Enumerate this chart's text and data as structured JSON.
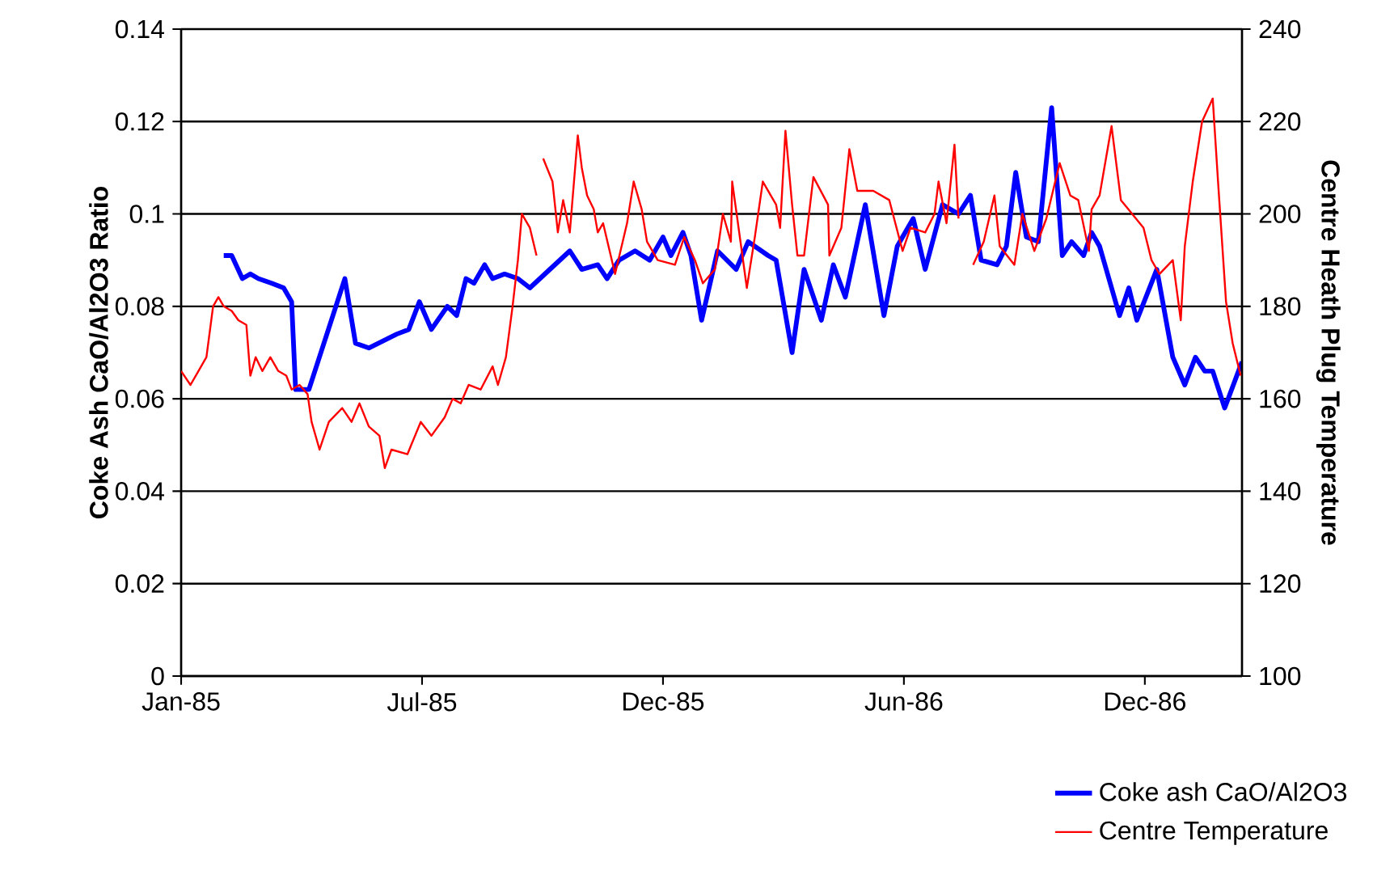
{
  "chart_data": {
    "type": "line",
    "ylabel": "Coke Ash CaO/Al2O3 Ratio",
    "y2label": "Centre Heath Plug Temperature",
    "xlim": [
      "1985-01-01",
      "1987-03-09"
    ],
    "xticks": [
      {
        "value": "1985-01-01",
        "label": "Jan-85"
      },
      {
        "value": "1985-07-01",
        "label": "Jul-85"
      },
      {
        "value": "1985-12-29",
        "label": "Dec-85"
      },
      {
        "value": "1986-06-28",
        "label": "Jun-86"
      },
      {
        "value": "1986-12-26",
        "label": "Dec-86"
      }
    ],
    "ylim": [
      0,
      0.14
    ],
    "yticks": [
      0,
      0.02,
      0.04,
      0.06,
      0.08,
      0.1,
      0.12,
      0.14
    ],
    "y2lim": [
      100,
      240
    ],
    "y2ticks": [
      100,
      120,
      140,
      160,
      180,
      200,
      220,
      240
    ],
    "grid": "y",
    "legend": "bottom right",
    "series": [
      {
        "name": "Coke ash CaO/Al2O3",
        "color": "#0000ff",
        "axis": "y",
        "x": [
          "1985-02-02",
          "1985-02-08",
          "1985-02-16",
          "1985-02-22",
          "1985-02-28",
          "1985-03-10",
          "1985-03-19",
          "1985-03-25",
          "1985-03-28",
          "1985-04-07",
          "1985-05-04",
          "1985-05-12",
          "1985-05-22",
          "1985-06-12",
          "1985-06-21",
          "1985-06-29",
          "1985-07-08",
          "1985-07-20",
          "1985-07-27",
          "1985-08-03",
          "1985-08-09",
          "1985-08-17",
          "1985-08-23",
          "1985-09-01",
          "1985-09-11",
          "1985-09-20",
          "1985-10-20",
          "1985-10-29",
          "1985-11-10",
          "1985-11-17",
          "1985-11-26",
          "1985-12-08",
          "1985-12-19",
          "1985-12-29",
          "1986-01-04",
          "1986-01-13",
          "1986-01-19",
          "1986-01-27",
          "1986-02-08",
          "1986-02-22",
          "1986-03-03",
          "1986-03-18",
          "1986-03-24",
          "1986-04-05",
          "1986-04-14",
          "1986-04-27",
          "1986-05-06",
          "1986-05-15",
          "1986-05-30",
          "1986-06-13",
          "1986-06-23",
          "1986-07-05",
          "1986-07-14",
          "1986-07-27",
          "1986-08-08",
          "1986-08-17",
          "1986-08-25",
          "1986-09-06",
          "1986-09-13",
          "1986-09-20",
          "1986-09-28",
          "1986-10-07",
          "1986-10-17",
          "1986-10-25",
          "1986-11-01",
          "1986-11-10",
          "1986-11-16",
          "1986-11-22",
          "1986-12-07",
          "1986-12-14",
          "1986-12-20",
          "1987-01-04",
          "1987-01-16",
          "1987-01-25",
          "1987-02-02",
          "1987-02-09",
          "1987-02-15",
          "1987-02-24",
          "1987-03-09"
        ],
        "values": [
          0.091,
          0.091,
          0.086,
          0.087,
          0.086,
          0.085,
          0.084,
          0.081,
          0.062,
          0.062,
          0.086,
          0.072,
          0.071,
          0.074,
          0.075,
          0.081,
          0.075,
          0.08,
          0.078,
          0.086,
          0.085,
          0.089,
          0.086,
          0.087,
          0.086,
          0.084,
          0.092,
          0.088,
          0.089,
          0.086,
          0.09,
          0.092,
          0.09,
          0.095,
          0.091,
          0.096,
          0.091,
          0.077,
          0.092,
          0.088,
          0.094,
          0.091,
          0.09,
          0.07,
          0.088,
          0.077,
          0.089,
          0.082,
          0.102,
          0.078,
          0.093,
          0.099,
          0.088,
          0.102,
          0.1,
          0.104,
          0.09,
          0.089,
          0.093,
          0.109,
          0.095,
          0.094,
          0.123,
          0.091,
          0.094,
          0.091,
          0.096,
          0.093,
          0.078,
          0.084,
          0.077,
          0.088,
          0.069,
          0.063,
          0.069,
          0.066,
          0.066,
          0.058,
          0.068
        ]
      },
      {
        "name": "Centre Temperature",
        "color": "#ff0000",
        "axis": "y2",
        "x": [
          "1985-01-01",
          "1985-01-08",
          "1985-01-14",
          "1985-01-20",
          "1985-01-25",
          "1985-01-29",
          "1985-02-02",
          "1985-02-08",
          "1985-02-13",
          "1985-02-19",
          "1985-02-22",
          "1985-02-26",
          "1985-03-03",
          "1985-03-09",
          "1985-03-15",
          "1985-03-21",
          "1985-03-25",
          "1985-03-31",
          "1985-04-06",
          "1985-04-09",
          "1985-04-15",
          "1985-04-22",
          "1985-05-02",
          "1985-05-09",
          "1985-05-15",
          "1985-05-22",
          "1985-05-30",
          "1985-06-03",
          "1985-06-08",
          "1985-06-20",
          "1985-06-30",
          "1985-07-08",
          "1985-07-18",
          "1985-07-24",
          "1985-07-30",
          "1985-08-05",
          "1985-08-14",
          "1985-08-23",
          "1985-08-27",
          "1985-09-02",
          "1985-09-07",
          "1985-09-11",
          "1985-09-14",
          "1985-09-20",
          "1985-09-25",
          "1985-09-27",
          "1985-09-30",
          "1985-10-07",
          "1985-10-11",
          "1985-10-15",
          "1985-10-20",
          "1985-10-26",
          "1985-10-29",
          "1985-11-02",
          "1985-11-07",
          "1985-11-10",
          "1985-11-14",
          "1985-11-23",
          "1985-12-02",
          "1985-12-07",
          "1985-12-13",
          "1985-12-17",
          "1985-12-25",
          "1986-01-07",
          "1986-01-14",
          "1986-01-22",
          "1986-01-28",
          "1986-02-06",
          "1986-02-12",
          "1986-02-18",
          "1986-02-19",
          "1986-03-02",
          "1986-03-08",
          "1986-03-14",
          "1986-03-24",
          "1986-03-27",
          "1986-03-31",
          "1986-04-05",
          "1986-04-09",
          "1986-04-14",
          "1986-04-21",
          "1986-05-02",
          "1986-05-03",
          "1986-05-12",
          "1986-05-18",
          "1986-05-24",
          "1986-06-05",
          "1986-06-17",
          "1986-06-27",
          "1986-07-03",
          "1986-07-14",
          "1986-07-21",
          "1986-07-24",
          "1986-07-30",
          "1986-08-05",
          "1986-08-08",
          "1986-08-13",
          "1986-08-19",
          "1986-08-27",
          "1986-09-04",
          "1986-09-08",
          "1986-09-19",
          "1986-09-25",
          "1986-10-04",
          "1986-10-13",
          "1986-10-23",
          "1986-10-31",
          "1986-11-06",
          "1986-11-14",
          "1986-11-16",
          "1986-11-22",
          "1986-12-01",
          "1986-12-08",
          "1986-12-25",
          "1986-12-31",
          "1987-01-06",
          "1987-01-16",
          "1987-01-22",
          "1987-01-25",
          "1987-01-31",
          "1987-02-07",
          "1987-02-15",
          "1987-02-19",
          "1987-02-25",
          "1987-03-02",
          "1987-03-08"
        ],
        "values": [
          166,
          163,
          166,
          169,
          180,
          182,
          180,
          179,
          177,
          176,
          165,
          169,
          166,
          169,
          166,
          165,
          162,
          163,
          161,
          155,
          149,
          155,
          158,
          155,
          159,
          154,
          152,
          145,
          149,
          148,
          155,
          152,
          156,
          160,
          159,
          163,
          162,
          167,
          163,
          169,
          180,
          190,
          200,
          197,
          191,
          null,
          212,
          207,
          196,
          203,
          196,
          217,
          210,
          204,
          201,
          196,
          198,
          187,
          198,
          207,
          201,
          194,
          190,
          189,
          195,
          190,
          185,
          188,
          200,
          194,
          207,
          184,
          195,
          207,
          202,
          197,
          218,
          202,
          191,
          191,
          208,
          202,
          191,
          197,
          214,
          205,
          205,
          203,
          192,
          197,
          196,
          200,
          207,
          198,
          215,
          199,
          null,
          189,
          194,
          204,
          193,
          189,
          200,
          192,
          199,
          211,
          204,
          203,
          192,
          201,
          204,
          219,
          203,
          197,
          190,
          187,
          190,
          177,
          193,
          207,
          220,
          225,
          207,
          181,
          172,
          165
        ]
      }
    ]
  }
}
